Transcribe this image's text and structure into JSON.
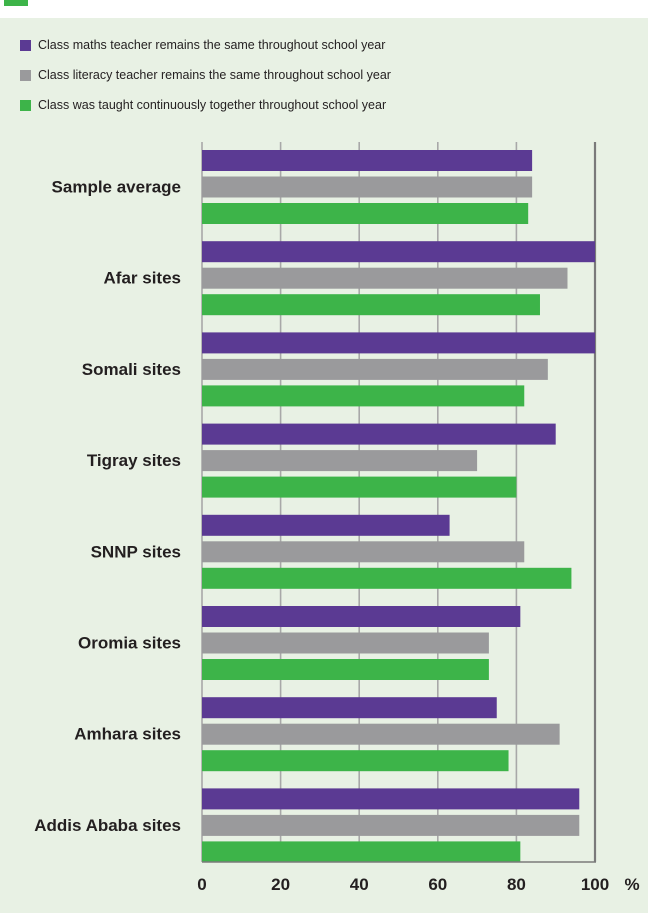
{
  "chart_data": {
    "type": "bar",
    "orientation": "horizontal",
    "xlabel": "%",
    "xlim": [
      0,
      100
    ],
    "xticks": [
      "0",
      "20",
      "40",
      "60",
      "80",
      "100"
    ],
    "grid": true,
    "legend_position": "top-left",
    "categories": [
      "Sample average",
      "Afar sites",
      "Somali sites",
      "Tigray sites",
      "SNNP sites",
      "Oromia sites",
      "Amhara sites",
      "Addis Ababa sites"
    ],
    "series": [
      {
        "name": "Class maths teacher remains the same throughout school year",
        "color": "#5b3a93",
        "values": [
          84,
          100,
          100,
          90,
          63,
          81,
          75,
          96
        ]
      },
      {
        "name": "Class literacy teacher remains the same throughout school year",
        "color": "#9a9a9c",
        "values": [
          84,
          93,
          88,
          70,
          82,
          73,
          91,
          96
        ]
      },
      {
        "name": "Class was taught continuously together throughout school year",
        "color": "#3db449",
        "values": [
          83,
          86,
          82,
          80,
          94,
          73,
          78,
          81
        ]
      }
    ]
  }
}
